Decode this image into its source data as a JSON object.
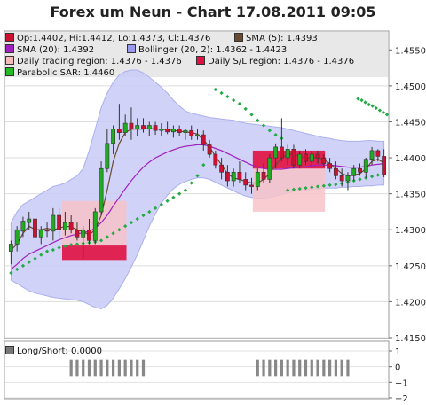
{
  "title": "Forex um Neun - Chart 17.08.2011 09:05",
  "legend": [
    {
      "label": "Op:1.4402, Hi:1.4412, Lo:1.4373, Cl:1.4376",
      "color": "#cc1133"
    },
    {
      "label": "SMA (5): 1.4393",
      "color": "#6b4a2e"
    },
    {
      "label": "SMA (20): 1.4392",
      "color": "#a020c0"
    },
    {
      "label": "Bollinger (20, 2): 1.4362 - 1.4423",
      "color": "#9999ee"
    },
    {
      "label": "Daily trading region: 1.4376 - 1.4376",
      "color": "#f5bcbc"
    },
    {
      "label": "Daily S/L region: 1.4376 - 1.4376",
      "color": "#dd1144"
    },
    {
      "label": "Parabolic SAR: 1.4460",
      "color": "#22bb22"
    }
  ],
  "lower_legend": {
    "label": "Long/Short: 0.0000",
    "color": "#777777"
  },
  "chart_data": [
    {
      "type": "candlestick",
      "ylim": [
        1.415,
        1.4575
      ],
      "y_ticks": [
        "1.4150",
        "1.4200",
        "1.4250",
        "1.4300",
        "1.4350",
        "1.4400",
        "1.4450",
        "1.4500",
        "1.4550"
      ],
      "grid": true,
      "candles": [
        {
          "o": 1.427,
          "h": 1.4285,
          "l": 1.4252,
          "c": 1.428
        },
        {
          "o": 1.428,
          "h": 1.4305,
          "l": 1.427,
          "c": 1.43
        },
        {
          "o": 1.4298,
          "h": 1.4318,
          "l": 1.429,
          "c": 1.4312
        },
        {
          "o": 1.431,
          "h": 1.4325,
          "l": 1.43,
          "c": 1.4315
        },
        {
          "o": 1.4315,
          "h": 1.432,
          "l": 1.4285,
          "c": 1.429
        },
        {
          "o": 1.429,
          "h": 1.4305,
          "l": 1.428,
          "c": 1.43
        },
        {
          "o": 1.43,
          "h": 1.431,
          "l": 1.429,
          "c": 1.4298
        },
        {
          "o": 1.4298,
          "h": 1.433,
          "l": 1.4285,
          "c": 1.432
        },
        {
          "o": 1.432,
          "h": 1.433,
          "l": 1.429,
          "c": 1.43
        },
        {
          "o": 1.43,
          "h": 1.4325,
          "l": 1.4292,
          "c": 1.431
        },
        {
          "o": 1.431,
          "h": 1.432,
          "l": 1.4295,
          "c": 1.43
        },
        {
          "o": 1.43,
          "h": 1.431,
          "l": 1.4285,
          "c": 1.429
        },
        {
          "o": 1.429,
          "h": 1.4305,
          "l": 1.426,
          "c": 1.43
        },
        {
          "o": 1.43,
          "h": 1.4315,
          "l": 1.428,
          "c": 1.4285
        },
        {
          "o": 1.4285,
          "h": 1.433,
          "l": 1.428,
          "c": 1.4325
        },
        {
          "o": 1.4325,
          "h": 1.4395,
          "l": 1.432,
          "c": 1.4385
        },
        {
          "o": 1.4385,
          "h": 1.444,
          "l": 1.438,
          "c": 1.442
        },
        {
          "o": 1.442,
          "h": 1.4445,
          "l": 1.4405,
          "c": 1.444
        },
        {
          "o": 1.444,
          "h": 1.4475,
          "l": 1.4425,
          "c": 1.4435
        },
        {
          "o": 1.4435,
          "h": 1.446,
          "l": 1.443,
          "c": 1.4448
        },
        {
          "o": 1.4448,
          "h": 1.447,
          "l": 1.4425,
          "c": 1.444
        },
        {
          "o": 1.444,
          "h": 1.4455,
          "l": 1.443,
          "c": 1.4445
        },
        {
          "o": 1.4445,
          "h": 1.4455,
          "l": 1.4435,
          "c": 1.444
        },
        {
          "o": 1.444,
          "h": 1.445,
          "l": 1.443,
          "c": 1.4445
        },
        {
          "o": 1.4445,
          "h": 1.445,
          "l": 1.4432,
          "c": 1.4438
        },
        {
          "o": 1.4438,
          "h": 1.4448,
          "l": 1.443,
          "c": 1.444
        },
        {
          "o": 1.444,
          "h": 1.445,
          "l": 1.4433,
          "c": 1.4436
        },
        {
          "o": 1.4436,
          "h": 1.4445,
          "l": 1.4428,
          "c": 1.444
        },
        {
          "o": 1.444,
          "h": 1.4445,
          "l": 1.443,
          "c": 1.4435
        },
        {
          "o": 1.4435,
          "h": 1.444,
          "l": 1.4425,
          "c": 1.4438
        },
        {
          "o": 1.4438,
          "h": 1.4445,
          "l": 1.4425,
          "c": 1.443
        },
        {
          "o": 1.443,
          "h": 1.444,
          "l": 1.4425,
          "c": 1.4432
        },
        {
          "o": 1.4432,
          "h": 1.4438,
          "l": 1.441,
          "c": 1.4418
        },
        {
          "o": 1.4418,
          "h": 1.4425,
          "l": 1.44,
          "c": 1.4405
        },
        {
          "o": 1.4405,
          "h": 1.441,
          "l": 1.4385,
          "c": 1.439
        },
        {
          "o": 1.439,
          "h": 1.44,
          "l": 1.437,
          "c": 1.438
        },
        {
          "o": 1.438,
          "h": 1.439,
          "l": 1.436,
          "c": 1.4368
        },
        {
          "o": 1.4368,
          "h": 1.4385,
          "l": 1.436,
          "c": 1.438
        },
        {
          "o": 1.438,
          "h": 1.4395,
          "l": 1.4365,
          "c": 1.437
        },
        {
          "o": 1.437,
          "h": 1.438,
          "l": 1.4355,
          "c": 1.4362
        },
        {
          "o": 1.4362,
          "h": 1.4372,
          "l": 1.435,
          "c": 1.436
        },
        {
          "o": 1.436,
          "h": 1.4385,
          "l": 1.4355,
          "c": 1.438
        },
        {
          "o": 1.438,
          "h": 1.4392,
          "l": 1.4365,
          "c": 1.437
        },
        {
          "o": 1.437,
          "h": 1.4405,
          "l": 1.4365,
          "c": 1.44
        },
        {
          "o": 1.44,
          "h": 1.442,
          "l": 1.4385,
          "c": 1.4415
        },
        {
          "o": 1.4415,
          "h": 1.4455,
          "l": 1.4395,
          "c": 1.44
        },
        {
          "o": 1.44,
          "h": 1.4418,
          "l": 1.439,
          "c": 1.4412
        },
        {
          "o": 1.4412,
          "h": 1.4418,
          "l": 1.4385,
          "c": 1.439
        },
        {
          "o": 1.439,
          "h": 1.441,
          "l": 1.4385,
          "c": 1.4405
        },
        {
          "o": 1.4405,
          "h": 1.4412,
          "l": 1.439,
          "c": 1.4395
        },
        {
          "o": 1.4395,
          "h": 1.441,
          "l": 1.4388,
          "c": 1.4405
        },
        {
          "o": 1.4405,
          "h": 1.441,
          "l": 1.4392,
          "c": 1.44
        },
        {
          "o": 1.44,
          "h": 1.4405,
          "l": 1.4388,
          "c": 1.4392
        },
        {
          "o": 1.4392,
          "h": 1.44,
          "l": 1.438,
          "c": 1.4385
        },
        {
          "o": 1.4385,
          "h": 1.4395,
          "l": 1.437,
          "c": 1.4375
        },
        {
          "o": 1.4375,
          "h": 1.4385,
          "l": 1.436,
          "c": 1.4368
        },
        {
          "o": 1.4368,
          "h": 1.438,
          "l": 1.4355,
          "c": 1.4375
        },
        {
          "o": 1.4375,
          "h": 1.439,
          "l": 1.4368,
          "c": 1.4385
        },
        {
          "o": 1.4385,
          "h": 1.4392,
          "l": 1.4375,
          "c": 1.438
        },
        {
          "o": 1.438,
          "h": 1.44,
          "l": 1.4372,
          "c": 1.4398
        },
        {
          "o": 1.4398,
          "h": 1.4415,
          "l": 1.439,
          "c": 1.441
        },
        {
          "o": 1.441,
          "h": 1.4412,
          "l": 1.4395,
          "c": 1.4402
        },
        {
          "o": 1.4402,
          "h": 1.4412,
          "l": 1.4373,
          "c": 1.4376
        }
      ],
      "sma5": [
        1.4272,
        1.428,
        1.4295,
        1.4305,
        1.43,
        1.43,
        1.4302,
        1.43,
        1.4302,
        1.4305,
        1.4304,
        1.43,
        1.4297,
        1.4293,
        1.43,
        1.432,
        1.4355,
        1.4395,
        1.442,
        1.4435,
        1.444,
        1.444,
        1.444,
        1.4441,
        1.444,
        1.444,
        1.4439,
        1.4438,
        1.4437,
        1.4436,
        1.4435,
        1.4433,
        1.4425,
        1.4415,
        1.4402,
        1.439,
        1.4378,
        1.4372,
        1.437,
        1.4367,
        1.4365,
        1.4365,
        1.437,
        1.4378,
        1.439,
        1.44,
        1.4405,
        1.4405,
        1.4402,
        1.44,
        1.44,
        1.44,
        1.4398,
        1.4392,
        1.4385,
        1.4378,
        1.4375,
        1.4376,
        1.4378,
        1.4385,
        1.4395,
        1.4398,
        1.4393
      ],
      "sma20": [
        1.4245,
        1.4252,
        1.426,
        1.4266,
        1.427,
        1.4274,
        1.4278,
        1.4282,
        1.4286,
        1.4289,
        1.4292,
        1.4294,
        1.4296,
        1.4298,
        1.4302,
        1.431,
        1.432,
        1.4333,
        1.4345,
        1.4357,
        1.4368,
        1.4378,
        1.4387,
        1.4394,
        1.44,
        1.4404,
        1.4408,
        1.4411,
        1.4414,
        1.4416,
        1.4417,
        1.4418,
        1.4418,
        1.4416,
        1.4413,
        1.441,
        1.4406,
        1.4402,
        1.4398,
        1.4394,
        1.439,
        1.4387,
        1.4385,
        1.4384,
        1.4384,
        1.4384,
        1.4385,
        1.4386,
        1.4387,
        1.4388,
        1.4389,
        1.439,
        1.439,
        1.439,
        1.4389,
        1.4388,
        1.4387,
        1.4387,
        1.4387,
        1.4388,
        1.439,
        1.4391,
        1.4392
      ],
      "boll_upper": [
        1.431,
        1.4325,
        1.4335,
        1.434,
        1.4345,
        1.435,
        1.4355,
        1.436,
        1.4362,
        1.4365,
        1.437,
        1.4375,
        1.4385,
        1.441,
        1.444,
        1.447,
        1.449,
        1.4505,
        1.4515,
        1.452,
        1.4522,
        1.4522,
        1.4518,
        1.4512,
        1.4505,
        1.4498,
        1.449,
        1.448,
        1.4472,
        1.4465,
        1.4462,
        1.446,
        1.4458,
        1.4456,
        1.4455,
        1.4454,
        1.4453,
        1.4452,
        1.445,
        1.4448,
        1.4447,
        1.4446,
        1.4445,
        1.4444,
        1.4443,
        1.4442,
        1.444,
        1.4438,
        1.4436,
        1.4434,
        1.4432,
        1.443,
        1.4428,
        1.4427,
        1.4425,
        1.4424,
        1.4423,
        1.4423,
        1.4423,
        1.4424,
        1.4424,
        1.4423,
        1.4423
      ],
      "boll_lower": [
        1.423,
        1.4225,
        1.422,
        1.4215,
        1.4212,
        1.421,
        1.4208,
        1.4206,
        1.4205,
        1.4204,
        1.4203,
        1.4202,
        1.42,
        1.4196,
        1.4192,
        1.419,
        1.4195,
        1.4205,
        1.4218,
        1.4232,
        1.4248,
        1.4265,
        1.4285,
        1.4305,
        1.4322,
        1.4337,
        1.4348,
        1.4357,
        1.4363,
        1.4367,
        1.437,
        1.4372,
        1.4372,
        1.437,
        1.4366,
        1.4362,
        1.4358,
        1.4354,
        1.435,
        1.4347,
        1.4345,
        1.4344,
        1.4344,
        1.4345,
        1.4347,
        1.4349,
        1.4351,
        1.4353,
        1.4354,
        1.4355,
        1.4356,
        1.4357,
        1.4358,
        1.4358,
        1.4358,
        1.4359,
        1.4359,
        1.436,
        1.436,
        1.4361,
        1.4361,
        1.4362,
        1.4362
      ],
      "sar": [
        [
          0,
          1.424
        ],
        [
          1,
          1.4245
        ],
        [
          2,
          1.425
        ],
        [
          3,
          1.4255
        ],
        [
          4,
          1.426
        ],
        [
          5,
          1.4265
        ],
        [
          6,
          1.427
        ],
        [
          7,
          1.4272
        ],
        [
          8,
          1.4275
        ],
        [
          9,
          1.4277
        ],
        [
          10,
          1.4279
        ],
        [
          11,
          1.428
        ],
        [
          12,
          1.4281
        ],
        [
          13,
          1.4282
        ],
        [
          14,
          1.4283
        ],
        [
          15,
          1.4285
        ],
        [
          16,
          1.429
        ],
        [
          17,
          1.4295
        ],
        [
          18,
          1.43
        ],
        [
          19,
          1.4305
        ],
        [
          20,
          1.431
        ],
        [
          21,
          1.4315
        ],
        [
          22,
          1.432
        ],
        [
          23,
          1.4325
        ],
        [
          24,
          1.433
        ],
        [
          25,
          1.4335
        ],
        [
          26,
          1.434
        ],
        [
          27,
          1.4345
        ],
        [
          28,
          1.435
        ],
        [
          29,
          1.4355
        ],
        [
          30,
          1.4365
        ],
        [
          31,
          1.4375
        ],
        [
          32,
          1.439
        ],
        [
          33,
          1.4405
        ],
        [
          34,
          1.4495
        ],
        [
          35,
          1.449
        ],
        [
          36,
          1.4485
        ],
        [
          37,
          1.448
        ],
        [
          38,
          1.4475
        ],
        [
          39,
          1.4468
        ],
        [
          40,
          1.446
        ],
        [
          41,
          1.4452
        ],
        [
          42,
          1.4445
        ],
        [
          43,
          1.4438
        ],
        [
          44,
          1.4432
        ],
        [
          45,
          1.4427
        ],
        [
          46,
          1.4355
        ],
        [
          47,
          1.4356
        ],
        [
          48,
          1.4357
        ],
        [
          49,
          1.4358
        ],
        [
          50,
          1.4359
        ],
        [
          51,
          1.436
        ],
        [
          52,
          1.4361
        ],
        [
          53,
          1.4362
        ],
        [
          54,
          1.4363
        ],
        [
          55,
          1.4364
        ],
        [
          56,
          1.4366
        ],
        [
          57,
          1.4368
        ],
        [
          58,
          1.437
        ],
        [
          59,
          1.4372
        ],
        [
          60,
          1.4374
        ],
        [
          61,
          1.4376
        ],
        [
          62,
          1.4378
        ],
        [
          57.7,
          1.4482
        ],
        [
          58.3,
          1.448
        ],
        [
          58.9,
          1.4477
        ],
        [
          59.5,
          1.4474
        ],
        [
          60.1,
          1.4472
        ],
        [
          60.7,
          1.4469
        ],
        [
          61.3,
          1.4466
        ],
        [
          61.9,
          1.4463
        ],
        [
          62.5,
          1.446
        ]
      ],
      "trading_region": [
        {
          "x0": 8.5,
          "x1": 19.2,
          "y0": 1.4258,
          "y1": 1.434
        },
        {
          "x0": 40.2,
          "x1": 52.2,
          "y0": 1.4325,
          "y1": 1.441
        }
      ],
      "sl_region": [
        {
          "x0": 8.5,
          "x1": 19.2,
          "y0": 1.4258,
          "y1": 1.4278
        },
        {
          "x0": 40.2,
          "x1": 52.2,
          "y0": 1.4385,
          "y1": 1.441
        }
      ]
    },
    {
      "type": "bar",
      "ylim": [
        -2,
        1
      ],
      "y_ticks": [
        "1",
        "0",
        "−1",
        "−2"
      ],
      "series_name": "Long/Short",
      "groups": [
        {
          "from": 10,
          "to": 22,
          "value": -1
        },
        {
          "from": 41,
          "to": 56,
          "value": -1
        }
      ]
    }
  ]
}
